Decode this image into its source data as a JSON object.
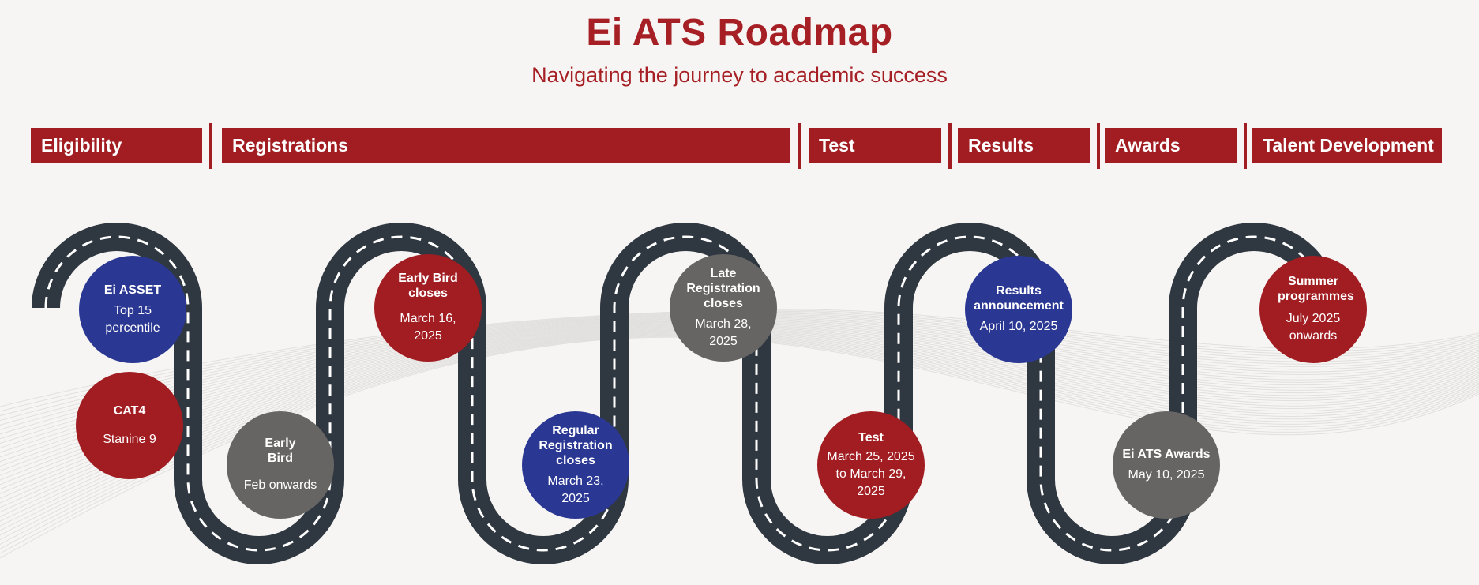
{
  "header": {
    "title": "Ei ATS Roadmap",
    "subtitle": "Navigating the journey to academic success"
  },
  "phases": [
    {
      "label": "Eligibility"
    },
    {
      "label": "Registrations"
    },
    {
      "label": "Test"
    },
    {
      "label": "Results"
    },
    {
      "label": "Awards"
    },
    {
      "label": "Talent Development"
    }
  ],
  "milestones": [
    {
      "heading": "Ei ASSET",
      "detail": "Top 15 percentile",
      "color": "#2b3893"
    },
    {
      "heading": "CAT4",
      "detail": "Stanine 9",
      "color": "#a11d22"
    },
    {
      "heading": "Early Bird",
      "detail": "Feb onwards",
      "color": "#676563"
    },
    {
      "heading": "Early Bird closes",
      "detail": "March 16, 2025",
      "color": "#a11d22"
    },
    {
      "heading": "Regular Registration closes",
      "detail": "March 23, 2025",
      "color": "#2b3893"
    },
    {
      "heading": "Late Registration closes",
      "detail": "March 28, 2025",
      "color": "#676563"
    },
    {
      "heading": "Test",
      "detail": "March 25, 2025 to March 29, 2025",
      "color": "#a11d22"
    },
    {
      "heading": "Results announcement",
      "detail": "April 10, 2025",
      "color": "#2b3893"
    },
    {
      "heading": "Ei ATS Awards",
      "detail": "May 10, 2025",
      "color": "#676563"
    },
    {
      "heading": "Summer programmes",
      "detail": "July 2025 onwards",
      "color": "#a11d22"
    }
  ],
  "colors": {
    "brand_red": "#a11d22",
    "title_red": "#a61f24",
    "blue": "#2b3893",
    "gray": "#676563",
    "road": "#2f3740",
    "road_dash": "#ffffff",
    "background": "#f6f5f3"
  }
}
